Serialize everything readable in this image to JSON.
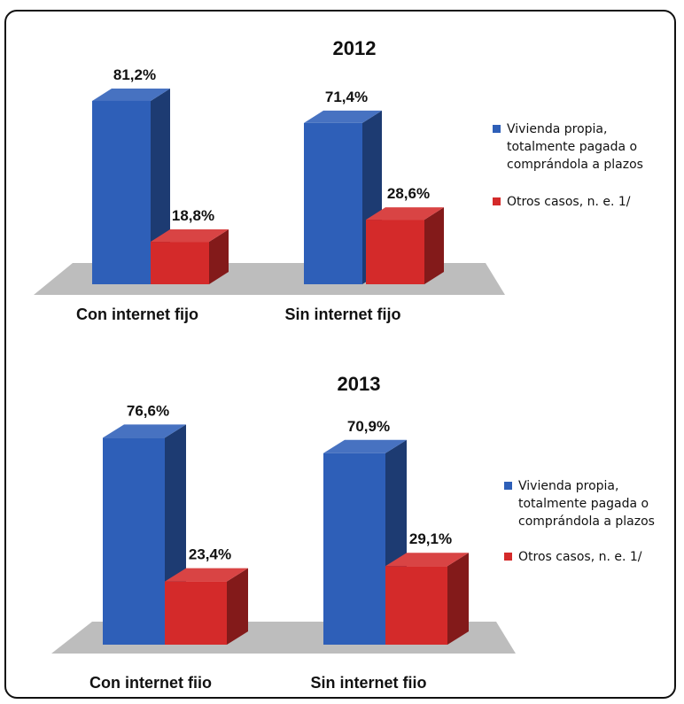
{
  "chart_data": [
    {
      "type": "bar",
      "title": "2012",
      "categories": [
        "Con internet fijo",
        "Sin internet fijo"
      ],
      "series": [
        {
          "name": "Vivienda propia, totalmente pagada o comprándola a plazos",
          "legend_lines": [
            "Vivienda propia,",
            "totalmente pagada o",
            "comprándola a plazos"
          ],
          "values": [
            81.2,
            71.4
          ],
          "labels": [
            "81,2%",
            "71,4%"
          ],
          "color": "#2E5FB8"
        },
        {
          "name": "Otros casos, n. e.  1/",
          "legend_lines": [
            "Otros casos, n. e.  1/"
          ],
          "values": [
            18.8,
            28.6
          ],
          "labels": [
            "18,8%",
            "28,6%"
          ],
          "color": "#D42A2A"
        }
      ],
      "ylim": [
        0,
        100
      ],
      "legend": "right",
      "grid": false
    },
    {
      "type": "bar",
      "title": "2013",
      "categories": [
        "Con internet fiio",
        "Sin internet fiio"
      ],
      "series": [
        {
          "name": "Vivienda propia, totalmente pagada o comprándola a plazos",
          "legend_lines": [
            "Vivienda propia,",
            "totalmente pagada o",
            "comprándola a plazos"
          ],
          "values": [
            76.6,
            70.9
          ],
          "labels": [
            "76,6%",
            "70,9%"
          ],
          "color": "#2E5FB8"
        },
        {
          "name": "Otros casos, n. e.  1/",
          "legend_lines": [
            "Otros casos, n. e.  1/"
          ],
          "values": [
            23.4,
            29.1
          ],
          "labels": [
            "23,4%",
            "29,1%"
          ],
          "color": "#D42A2A"
        }
      ],
      "ylim": [
        0,
        100
      ],
      "legend": "right",
      "grid": false
    }
  ]
}
